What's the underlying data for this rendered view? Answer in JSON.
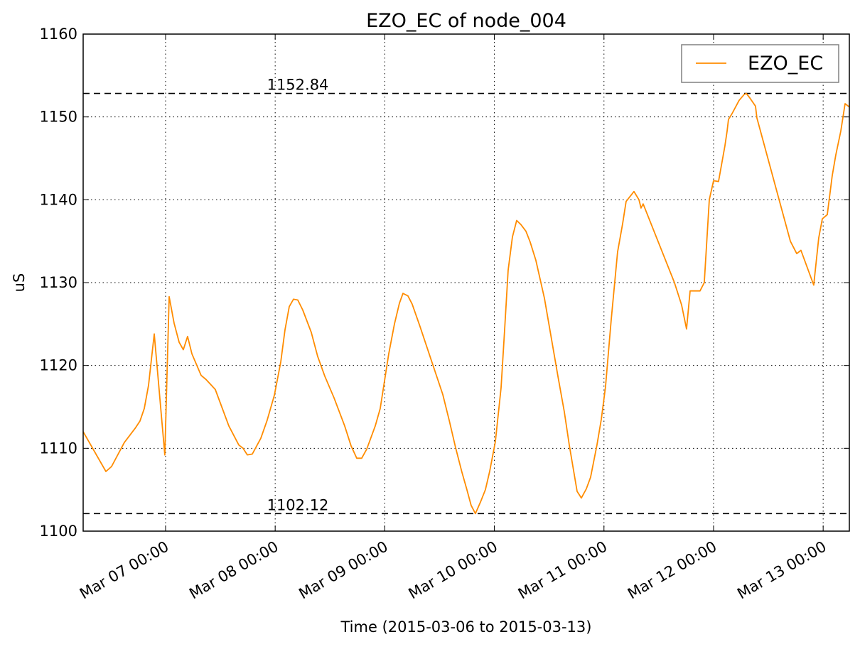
{
  "chart_data": {
    "type": "line",
    "title": "EZO_EC of node_004",
    "xlabel": "Time (2015-03-06 to 2015-03-13)",
    "ylabel": "uS",
    "x": [
      "2015-03-06T05:57",
      "2015-03-06T10:56",
      "2015-03-06T12:10",
      "2015-03-06T14:58",
      "2015-03-06T17:19",
      "2015-03-06T18:24",
      "2015-03-06T19:20",
      "2015-03-06T20:16",
      "2015-03-06T21:31",
      "2015-03-06T23:50",
      "2015-03-07T00:47",
      "2015-03-07T01:52",
      "2015-03-07T02:58",
      "2015-03-07T03:53",
      "2015-03-07T04:49",
      "2015-03-07T05:46",
      "2015-03-07T07:47",
      "2015-03-07T08:52",
      "2015-03-07T10:53",
      "2015-03-07T13:51",
      "2015-03-07T16:02",
      "2015-03-07T16:58",
      "2015-03-07T17:54",
      "2015-03-07T18:59",
      "2015-03-07T20:51",
      "2015-03-07T22:15",
      "2015-03-07T23:49",
      "2015-03-08T01:13",
      "2015-03-08T02:09",
      "2015-03-08T03:05",
      "2015-03-08T04:01",
      "2015-03-08T04:57",
      "2015-03-08T06:02",
      "2015-03-08T07:54",
      "2015-03-08T09:18",
      "2015-03-08T10:52",
      "2015-03-08T12:53",
      "2015-03-08T15:13",
      "2015-03-08T16:37",
      "2015-03-08T17:52",
      "2015-03-08T18:57",
      "2015-03-08T20:03",
      "2015-03-08T21:55",
      "2015-03-08T23:00",
      "2015-03-09T00:52",
      "2015-03-09T02:07",
      "2015-03-09T03:12",
      "2015-03-09T03:59",
      "2015-03-09T05:04",
      "2015-03-09T06:00",
      "2015-03-09T07:43",
      "2015-03-09T09:54",
      "2015-03-09T12:42",
      "2015-03-09T14:06",
      "2015-03-09T15:30",
      "2015-03-09T16:54",
      "2015-03-09T17:59",
      "2015-03-09T18:55",
      "2015-03-09T19:51",
      "2015-03-09T20:57",
      "2015-03-09T22:02",
      "2015-03-09T22:58",
      "2015-03-10T00:13",
      "2015-03-10T01:28",
      "2015-03-10T02:14",
      "2015-03-10T03:01",
      "2015-03-10T03:57",
      "2015-03-10T04:53",
      "2015-03-10T05:49",
      "2015-03-10T06:55",
      "2015-03-10T07:50",
      "2015-03-10T09:05",
      "2015-03-10T10:58",
      "2015-03-10T13:55",
      "2015-03-10T15:19",
      "2015-03-10T16:24",
      "2015-03-10T18:07",
      "2015-03-10T19:03",
      "2015-03-10T20:08",
      "2015-03-10T21:04",
      "2015-03-10T22:28",
      "2015-03-10T23:25",
      "2015-03-11T00:20",
      "2015-03-11T01:35",
      "2015-03-11T02:59",
      "2015-03-11T04:05",
      "2015-03-11T04:51",
      "2015-03-11T06:34",
      "2015-03-11T07:40",
      "2015-03-11T08:07",
      "2015-03-11T08:35",
      "2015-03-11T15:26",
      "2015-03-11T17:00",
      "2015-03-11T18:05",
      "2015-03-11T18:52",
      "2015-03-11T19:48",
      "2015-03-11T21:02",
      "2015-03-11T21:58",
      "2015-03-11T23:04",
      "2015-03-12T00:00",
      "2015-03-12T01:05",
      "2015-03-12T02:29",
      "2015-03-12T02:58",
      "2015-03-12T03:16",
      "2015-03-12T04:03",
      "2015-03-12T05:36",
      "2015-03-12T06:41",
      "2015-03-12T07:10",
      "2015-03-12T07:56",
      "2015-03-12T09:11",
      "2015-03-12T09:29",
      "2015-03-12T16:49",
      "2015-03-12T18:13",
      "2015-03-12T19:08",
      "2015-03-12T21:56",
      "2015-03-12T23:02",
      "2015-03-12T23:49",
      "2015-03-13T00:54",
      "2015-03-13T01:59",
      "2015-03-13T02:46",
      "2015-03-13T03:52",
      "2015-03-13T04:48",
      "2015-03-13T05:44"
    ],
    "series": [
      {
        "name": "EZO_EC",
        "color": "#ff8c00",
        "values": [
          1112.0,
          1107.2,
          1107.8,
          1110.7,
          1112.4,
          1113.3,
          1114.8,
          1117.6,
          1123.8,
          1109.2,
          1128.3,
          1125.1,
          1122.8,
          1121.9,
          1123.5,
          1121.4,
          1118.8,
          1118.3,
          1117.1,
          1112.7,
          1110.4,
          1110.0,
          1109.2,
          1109.3,
          1111.2,
          1113.4,
          1116.4,
          1120.4,
          1124.3,
          1127.1,
          1128.0,
          1127.9,
          1126.7,
          1124.0,
          1121.1,
          1118.7,
          1116.1,
          1112.7,
          1110.3,
          1108.8,
          1108.8,
          1109.9,
          1112.7,
          1114.8,
          1121.4,
          1125.0,
          1127.5,
          1128.7,
          1128.4,
          1127.4,
          1124.7,
          1121.1,
          1116.5,
          1113.4,
          1110.1,
          1107.1,
          1105.0,
          1103.1,
          1102.12,
          1103.5,
          1105.0,
          1107.2,
          1110.8,
          1117.3,
          1124.2,
          1131.5,
          1135.5,
          1137.5,
          1137.0,
          1136.2,
          1134.9,
          1132.7,
          1128.1,
          1118.7,
          1114.4,
          1110.4,
          1104.8,
          1104.0,
          1105.1,
          1106.5,
          1110.4,
          1113.5,
          1117.4,
          1125.5,
          1133.7,
          1137.1,
          1139.8,
          1141.0,
          1140.0,
          1139.0,
          1139.5,
          1130.0,
          1127.3,
          1124.4,
          1129.0,
          1129.0,
          1129.0,
          1130.0,
          1140.0,
          1142.3,
          1142.2,
          1146.5,
          1148.3,
          1149.7,
          1150.4,
          1152.0,
          1152.7,
          1152.84,
          1152.3,
          1151.3,
          1149.9,
          1135.0,
          1133.5,
          1133.9,
          1129.7,
          1135.4,
          1137.7,
          1138.2,
          1142.9,
          1145.4,
          1148.3,
          1151.6,
          1151.2
        ]
      }
    ],
    "xlim": [
      "2015-03-06T05:57",
      "2015-03-13T05:44"
    ],
    "xticks": [
      {
        "value": "2015-03-07T00:00",
        "label": "Mar 07 00:00"
      },
      {
        "value": "2015-03-08T00:00",
        "label": "Mar 08 00:00"
      },
      {
        "value": "2015-03-09T00:00",
        "label": "Mar 09 00:00"
      },
      {
        "value": "2015-03-10T00:00",
        "label": "Mar 10 00:00"
      },
      {
        "value": "2015-03-11T00:00",
        "label": "Mar 11 00:00"
      },
      {
        "value": "2015-03-12T00:00",
        "label": "Mar 12 00:00"
      },
      {
        "value": "2015-03-13T00:00",
        "label": "Mar 13 00:00"
      }
    ],
    "ylim": [
      1100,
      1160
    ],
    "yticks": [
      1100,
      1110,
      1120,
      1130,
      1140,
      1150,
      1160
    ],
    "hlines": [
      1152.84,
      1102.12
    ],
    "grid": true,
    "legend": "upper right"
  }
}
